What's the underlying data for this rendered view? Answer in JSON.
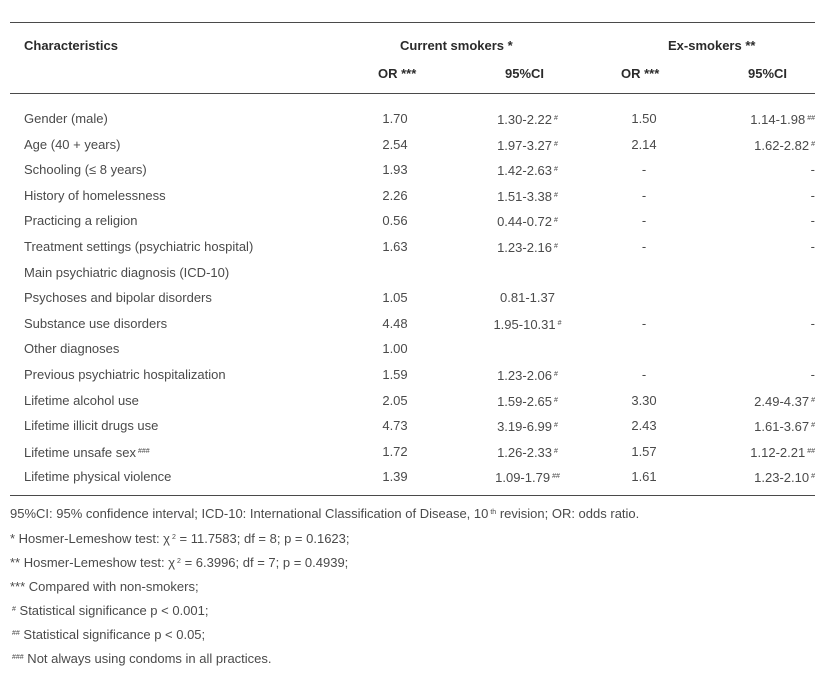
{
  "table": {
    "headers": {
      "characteristics": "Characteristics",
      "current_smokers": "Current smokers *",
      "ex_smokers": "Ex-smokers **",
      "or_current": "OR ***",
      "ci_current": "95%CI",
      "or_ex": "OR ***",
      "ci_ex": "95%CI"
    },
    "rows": [
      {
        "label": "Gender (male)",
        "or1": "1.70",
        "ci1": "1.30-2.22",
        "m1": "#",
        "or2": "1.50",
        "ci2": "1.14-1.98",
        "m2": "##"
      },
      {
        "label": "Age (40 + years)",
        "or1": "2.54",
        "ci1": "1.97-3.27",
        "m1": "#",
        "or2": "2.14",
        "ci2": "1.62-2.82",
        "m2": "#"
      },
      {
        "label": "Schooling (≤ 8 years)",
        "or1": "1.93",
        "ci1": "1.42-2.63",
        "m1": "#",
        "or2": "-",
        "ci2": "-",
        "m2": ""
      },
      {
        "label": "History of homelessness",
        "or1": "2.26",
        "ci1": "1.51-3.38",
        "m1": "#",
        "or2": "-",
        "ci2": "-",
        "m2": ""
      },
      {
        "label": "Practicing a religion",
        "or1": "0.56",
        "ci1": "0.44-0.72",
        "m1": "#",
        "or2": "-",
        "ci2": "-",
        "m2": ""
      },
      {
        "label": "Treatment settings (psychiatric hospital)",
        "or1": "1.63",
        "ci1": "1.23-2.16",
        "m1": "#",
        "or2": "-",
        "ci2": "-",
        "m2": ""
      },
      {
        "label": "Main psychiatric diagnosis (ICD-10)",
        "or1": "",
        "ci1": "",
        "m1": "",
        "or2": "",
        "ci2": "",
        "m2": ""
      },
      {
        "label": "Psychoses and bipolar disorders",
        "or1": "1.05",
        "ci1": "0.81-1.37",
        "m1": "",
        "or2": "",
        "ci2": "",
        "m2": ""
      },
      {
        "label": "Substance use disorders",
        "or1": "4.48",
        "ci1": "1.95-10.31",
        "m1": "#",
        "or2": "-",
        "ci2": "-",
        "m2": ""
      },
      {
        "label": "Other diagnoses",
        "or1": "1.00",
        "ci1": "",
        "m1": "",
        "or2": "",
        "ci2": "",
        "m2": ""
      },
      {
        "label": "Previous psychiatric hospitalization",
        "or1": "1.59",
        "ci1": "1.23-2.06",
        "m1": "#",
        "or2": "-",
        "ci2": "-",
        "m2": ""
      },
      {
        "label": "Lifetime alcohol use",
        "or1": "2.05",
        "ci1": "1.59-2.65",
        "m1": "#",
        "or2": "3.30",
        "ci2": "2.49-4.37",
        "m2": "#"
      },
      {
        "label": "Lifetime illicit drugs use",
        "or1": "4.73",
        "ci1": "3.19-6.99",
        "m1": "#",
        "or2": "2.43",
        "ci2": "1.61-3.67",
        "m2": "#"
      },
      {
        "label": "Lifetime unsafe sex",
        "label_sup": "###",
        "or1": "1.72",
        "ci1": "1.26-2.33",
        "m1": "#",
        "or2": "1.57",
        "ci2": "1.12-2.21",
        "m2": "##"
      },
      {
        "label": "Lifetime physical violence",
        "or1": "1.39",
        "ci1": "1.09-1.79",
        "m1": "##",
        "or2": "1.61",
        "ci2": "1.23-2.10",
        "m2": "#"
      }
    ]
  },
  "footnotes": {
    "f1_a": "95%CI: 95% confidence interval; ICD-10: International Classification of Disease, 10",
    "f1_sup": "th",
    "f1_b": " revision; OR: odds ratio.",
    "f2_a": "* Hosmer-Lemeshow test: χ",
    "f2_sup": "2",
    "f2_b": " = 11.7583; df = 8; p = 0.1623;",
    "f3_a": "** Hosmer-Lemeshow test: χ",
    "f3_sup": "2",
    "f3_b": " = 6.3996; df = 7; p = 0.4939;",
    "f4": "*** Compared with non-smokers;",
    "f5_sup": "#",
    "f5": " Statistical significance p < 0.001;",
    "f6_sup": "##",
    "f6": " Statistical significance p < 0.05;",
    "f7_sup": "###",
    "f7": " Not always using condoms in all practices."
  }
}
